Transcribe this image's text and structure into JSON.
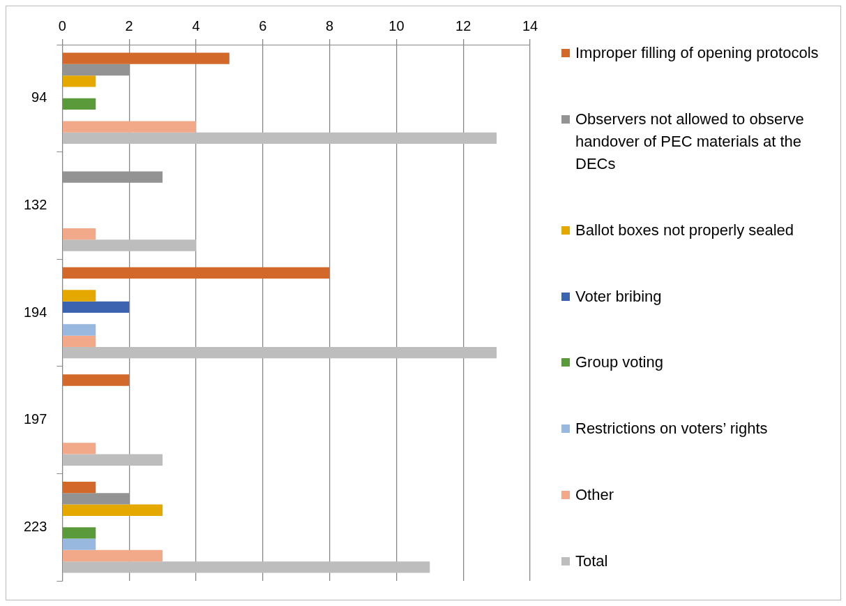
{
  "chart_data": {
    "type": "bar",
    "orientation": "horizontal",
    "categories": [
      "94",
      "132",
      "194",
      "197",
      "223"
    ],
    "series": [
      {
        "name": "Improper filling of opening protocols",
        "color": "#d2692a",
        "values": [
          5,
          0,
          8,
          2,
          1
        ]
      },
      {
        "name": "Observers not allowed to observe handover of PEC materials at the DECs",
        "color": "#939393",
        "values": [
          2,
          3,
          0,
          0,
          2
        ]
      },
      {
        "name": "Ballot boxes not properly sealed",
        "color": "#e5a800",
        "values": [
          1,
          0,
          1,
          0,
          3
        ]
      },
      {
        "name": "Voter bribing",
        "color": "#3c63af",
        "values": [
          0,
          0,
          2,
          0,
          0
        ]
      },
      {
        "name": "Group voting",
        "color": "#5b9a3b",
        "values": [
          1,
          0,
          0,
          0,
          1
        ]
      },
      {
        "name": "Restrictions on voters’ rights",
        "color": "#98b8e0",
        "values": [
          0,
          0,
          1,
          0,
          1
        ]
      },
      {
        "name": "Other",
        "color": "#f2a98a",
        "values": [
          4,
          1,
          1,
          1,
          3
        ]
      },
      {
        "name": "Total",
        "color": "#bdbdbd",
        "values": [
          13,
          4,
          13,
          3,
          11
        ]
      }
    ],
    "xlim": [
      0,
      14
    ],
    "xticks": [
      0,
      2,
      4,
      6,
      8,
      10,
      12,
      14
    ],
    "grid": "x",
    "legend": "right"
  }
}
